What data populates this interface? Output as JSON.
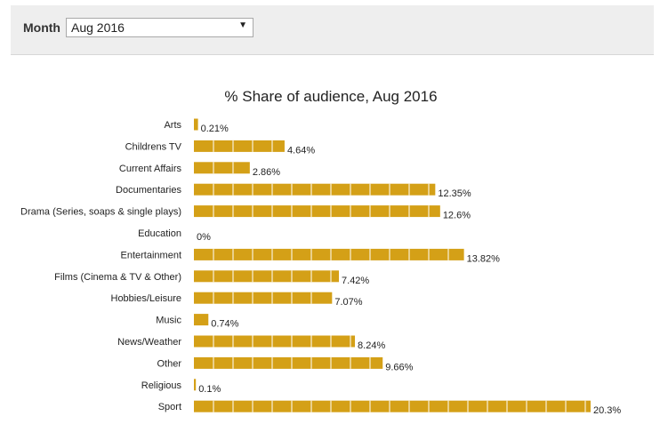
{
  "filter": {
    "label": "Month",
    "selected": "Aug 2016"
  },
  "colors": {
    "bar": "#D4A017",
    "text": "#222222"
  },
  "chart_data": {
    "type": "bar",
    "orientation": "horizontal",
    "title": "% Share of audience, Aug 2016",
    "categories": [
      "Arts",
      "Childrens TV",
      "Current Affairs",
      "Documentaries",
      "Drama (Series, soaps & single plays)",
      "Education",
      "Entertainment",
      "Films (Cinema & TV & Other)",
      "Hobbies/Leisure",
      "Music",
      "News/Weather",
      "Other",
      "Religious",
      "Sport"
    ],
    "values": [
      0.21,
      4.64,
      2.86,
      12.35,
      12.6,
      0,
      13.82,
      7.42,
      7.07,
      0.74,
      8.24,
      9.66,
      0.1,
      20.3
    ],
    "value_labels": [
      "0.21%",
      "4.64%",
      "2.86%",
      "12.35%",
      "12.6%",
      "0%",
      "13.82%",
      "7.42%",
      "7.07%",
      "0.74%",
      "8.24%",
      "9.66%",
      "0.1%",
      "20.3%"
    ],
    "xlim": [
      0,
      20.3
    ],
    "grid": false,
    "legend": "none"
  }
}
